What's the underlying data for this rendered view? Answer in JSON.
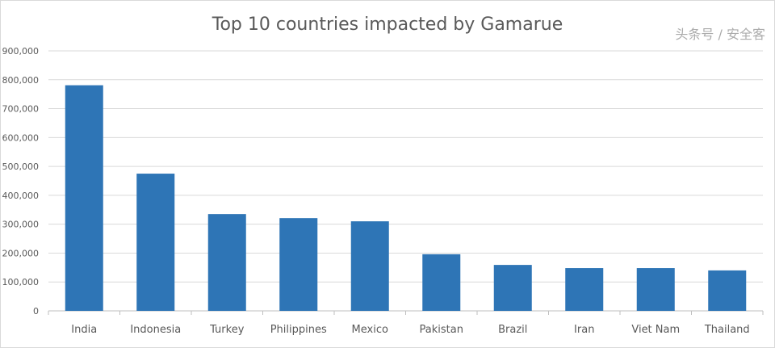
{
  "chart_data": {
    "type": "bar",
    "title": "Top 10 countries impacted by Gamarue",
    "xlabel": "",
    "ylabel": "",
    "categories": [
      "India",
      "Indonesia",
      "Turkey",
      "Philippines",
      "Mexico",
      "Pakistan",
      "Brazil",
      "Iran",
      "Viet Nam",
      "Thailand"
    ],
    "values": [
      781000,
      475000,
      335000,
      321000,
      310000,
      196000,
      159000,
      148000,
      148000,
      140000
    ],
    "ylim": [
      0,
      900000
    ],
    "yticks": [
      0,
      100000,
      200000,
      300000,
      400000,
      500000,
      600000,
      700000,
      800000,
      900000
    ],
    "ytick_labels": [
      "0",
      "100,000",
      "200,000",
      "300,000",
      "400,000",
      "500,000",
      "600,000",
      "700,000",
      "800,000",
      "900,000"
    ],
    "grid": true,
    "legend": "none",
    "bar_color": "#2e75b6"
  },
  "watermark": "头条号 / 安全客"
}
